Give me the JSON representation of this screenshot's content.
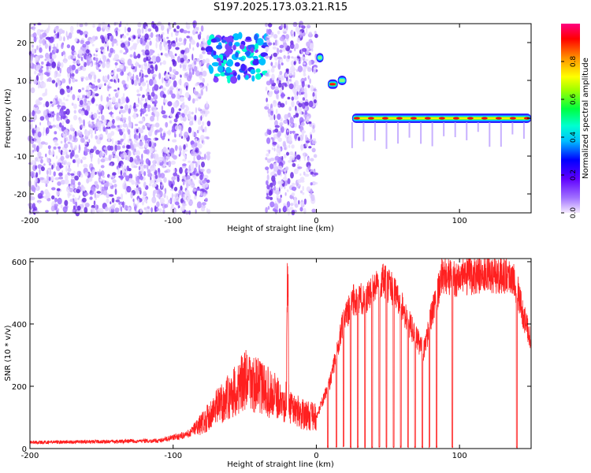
{
  "title": "S197.2025.173.03.21.R15",
  "colors": {
    "snr_line": "#ff2020",
    "axis": "#000000"
  },
  "chart_data": [
    {
      "type": "heatmap",
      "xlabel": "Height of straight line (km)",
      "ylabel": "Frequency (Hz)",
      "xlim": [
        -200,
        150
      ],
      "ylim": [
        -25,
        25
      ],
      "xticks": [
        -200,
        -100,
        0,
        100
      ],
      "yticks": [
        -20,
        -10,
        0,
        10,
        20
      ],
      "colorbar": {
        "label": "Normalized spectral amplitude",
        "range": [
          0,
          1
        ],
        "ticks": [
          0.0,
          0.2,
          0.4,
          0.6,
          0.8
        ],
        "colormap": "rainbow (violet → blue → cyan → green → yellow → red → magenta)"
      },
      "features": [
        {
          "x_range": [
            -200,
            -75
          ],
          "freq_range": [
            -25,
            25
          ],
          "level": "low, scattered noise"
        },
        {
          "x_range": [
            -75,
            -35
          ],
          "freq_range": [
            10,
            22
          ],
          "level": "moderate cluster"
        },
        {
          "x_range": [
            -35,
            0
          ],
          "freq_range": [
            -25,
            25
          ],
          "level": "low, scattered noise"
        },
        {
          "x_range": [
            0,
            5
          ],
          "freq_center": 16,
          "level": "moderate"
        },
        {
          "x_range": [
            8,
            15
          ],
          "freq_center": 9,
          "level": "high"
        },
        {
          "x_range": [
            15,
            21
          ],
          "freq_center": 10,
          "level": "moderate"
        },
        {
          "x_range": [
            25,
            150
          ],
          "freq_center": 0,
          "level": "high, continuous tone"
        }
      ]
    },
    {
      "type": "line",
      "xlabel": "Height of straight line (km)",
      "ylabel": "SNR (10 * v/v)",
      "xlim": [
        -200,
        150
      ],
      "ylim": [
        0,
        610
      ],
      "xticks": [
        -200,
        -100,
        0,
        100
      ],
      "yticks": [
        0,
        200,
        400,
        600
      ],
      "envelope": [
        {
          "x": -200,
          "y": 20
        },
        {
          "x": -150,
          "y": 22
        },
        {
          "x": -110,
          "y": 25
        },
        {
          "x": -90,
          "y": 45
        },
        {
          "x": -80,
          "y": 80
        },
        {
          "x": -70,
          "y": 130
        },
        {
          "x": -60,
          "y": 170
        },
        {
          "x": -50,
          "y": 220
        },
        {
          "x": -40,
          "y": 200
        },
        {
          "x": -30,
          "y": 170
        },
        {
          "x": -21,
          "y": 150
        },
        {
          "x": -20,
          "y": 560
        },
        {
          "x": -19,
          "y": 140
        },
        {
          "x": -10,
          "y": 110
        },
        {
          "x": 0,
          "y": 100
        },
        {
          "x": 10,
          "y": 220
        },
        {
          "x": 18,
          "y": 390
        },
        {
          "x": 25,
          "y": 480
        },
        {
          "x": 35,
          "y": 480
        },
        {
          "x": 45,
          "y": 540
        },
        {
          "x": 55,
          "y": 510
        },
        {
          "x": 65,
          "y": 400
        },
        {
          "x": 75,
          "y": 310
        },
        {
          "x": 80,
          "y": 420
        },
        {
          "x": 88,
          "y": 560
        },
        {
          "x": 95,
          "y": 545
        },
        {
          "x": 105,
          "y": 550
        },
        {
          "x": 115,
          "y": 560
        },
        {
          "x": 125,
          "y": 555
        },
        {
          "x": 135,
          "y": 560
        },
        {
          "x": 140,
          "y": 520
        },
        {
          "x": 145,
          "y": 420
        },
        {
          "x": 150,
          "y": 350
        }
      ],
      "dropouts_x": [
        8,
        14,
        19,
        24,
        29,
        34,
        39,
        44,
        49,
        54,
        59,
        64,
        69,
        74,
        79,
        84,
        95,
        140
      ]
    }
  ]
}
